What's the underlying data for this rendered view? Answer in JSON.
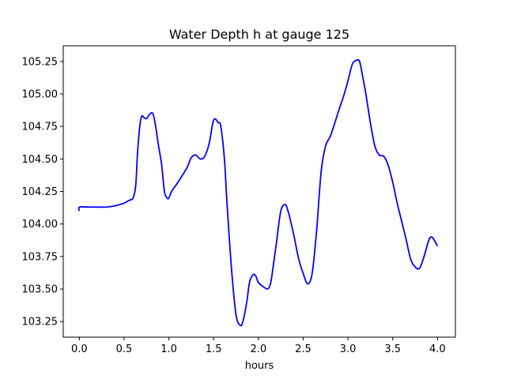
{
  "chart_data": {
    "type": "line",
    "title": "Water Depth h at gauge 125",
    "xlabel": "hours",
    "ylabel": "",
    "xlim": [
      -0.18,
      4.2
    ],
    "ylim": [
      103.13,
      105.37
    ],
    "xticks": [
      0.0,
      0.5,
      1.0,
      1.5,
      2.0,
      2.5,
      3.0,
      3.5,
      4.0
    ],
    "xtick_labels": [
      "0.0",
      "0.5",
      "1.0",
      "1.5",
      "2.0",
      "2.5",
      "3.0",
      "3.5",
      "4.0"
    ],
    "yticks": [
      103.25,
      103.5,
      103.75,
      104.0,
      104.25,
      104.5,
      104.75,
      105.0,
      105.25
    ],
    "ytick_labels": [
      "103.25",
      "103.50",
      "103.75",
      "104.00",
      "104.25",
      "104.50",
      "104.75",
      "105.00",
      "105.25"
    ],
    "grid": false,
    "legend": false,
    "series": [
      {
        "color": "#0000ff",
        "x": [
          0.0,
          0.0,
          0.1,
          0.2,
          0.3,
          0.4,
          0.5,
          0.55,
          0.6,
          0.63,
          0.65,
          0.68,
          0.7,
          0.72,
          0.75,
          0.78,
          0.82,
          0.85,
          0.88,
          0.92,
          0.95,
          0.98,
          1.0,
          1.03,
          1.1,
          1.2,
          1.25,
          1.3,
          1.35,
          1.4,
          1.45,
          1.5,
          1.55,
          1.58,
          1.62,
          1.65,
          1.7,
          1.75,
          1.8,
          1.83,
          1.87,
          1.9,
          1.94,
          1.97,
          2.0,
          2.05,
          2.1,
          2.13,
          2.15,
          2.2,
          2.25,
          2.3,
          2.33,
          2.35,
          2.4,
          2.45,
          2.5,
          2.55,
          2.6,
          2.65,
          2.7,
          2.75,
          2.8,
          2.85,
          2.9,
          2.95,
          3.0,
          3.05,
          3.1,
          3.13,
          3.16,
          3.2,
          3.25,
          3.3,
          3.35,
          3.4,
          3.45,
          3.5,
          3.55,
          3.6,
          3.65,
          3.7,
          3.75,
          3.8,
          3.85,
          3.9,
          3.93,
          3.96,
          4.0
        ],
        "y": [
          104.1,
          104.13,
          104.13,
          104.13,
          104.13,
          104.14,
          104.16,
          104.18,
          104.2,
          104.3,
          104.55,
          104.78,
          104.83,
          104.82,
          104.81,
          104.84,
          104.85,
          104.76,
          104.62,
          104.45,
          104.25,
          104.2,
          104.2,
          104.25,
          104.32,
          104.43,
          104.51,
          104.53,
          104.5,
          104.52,
          104.62,
          104.8,
          104.78,
          104.75,
          104.5,
          104.15,
          103.65,
          103.3,
          103.22,
          103.26,
          103.4,
          103.55,
          103.61,
          103.6,
          103.55,
          103.52,
          103.5,
          103.53,
          103.6,
          103.85,
          104.1,
          104.15,
          104.1,
          104.05,
          103.9,
          103.73,
          103.62,
          103.54,
          103.62,
          103.95,
          104.4,
          104.6,
          104.67,
          104.77,
          104.88,
          104.98,
          105.1,
          105.23,
          105.26,
          105.25,
          105.15,
          105.0,
          104.78,
          104.6,
          104.53,
          104.52,
          104.45,
          104.32,
          104.16,
          104.02,
          103.88,
          103.73,
          103.67,
          103.66,
          103.75,
          103.87,
          103.9,
          103.88,
          103.83
        ]
      }
    ]
  }
}
